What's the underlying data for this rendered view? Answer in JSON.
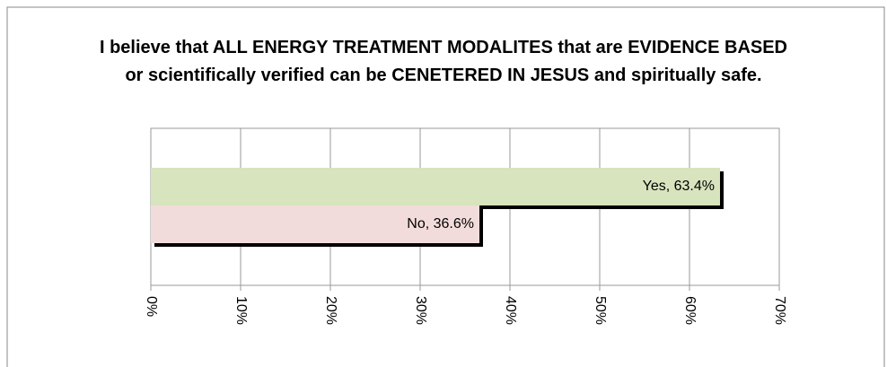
{
  "chart_data": {
    "type": "hbar",
    "title": "I believe that ALL ENERGY TREATMENT MODALITES that are EVIDENCE BASED or scientifically verified can be CENETERED IN JESUS and spiritually safe.",
    "categories": [
      "Yes",
      "No"
    ],
    "values": [
      63.4,
      36.6
    ],
    "value_labels": [
      "Yes, 63.4%",
      "No, 36.6%"
    ],
    "colors": [
      "#d7e4bd",
      "#f2dcdb"
    ],
    "xlim": [
      0,
      70
    ],
    "xticks": [
      {
        "value": 0,
        "label": "0%"
      },
      {
        "value": 10,
        "label": "10%"
      },
      {
        "value": 20,
        "label": "20%"
      },
      {
        "value": 30,
        "label": "30%"
      },
      {
        "value": 40,
        "label": "40%"
      },
      {
        "value": 50,
        "label": "50%"
      },
      {
        "value": 60,
        "label": "60%"
      },
      {
        "value": 70,
        "label": "70%"
      }
    ],
    "grid": true
  }
}
